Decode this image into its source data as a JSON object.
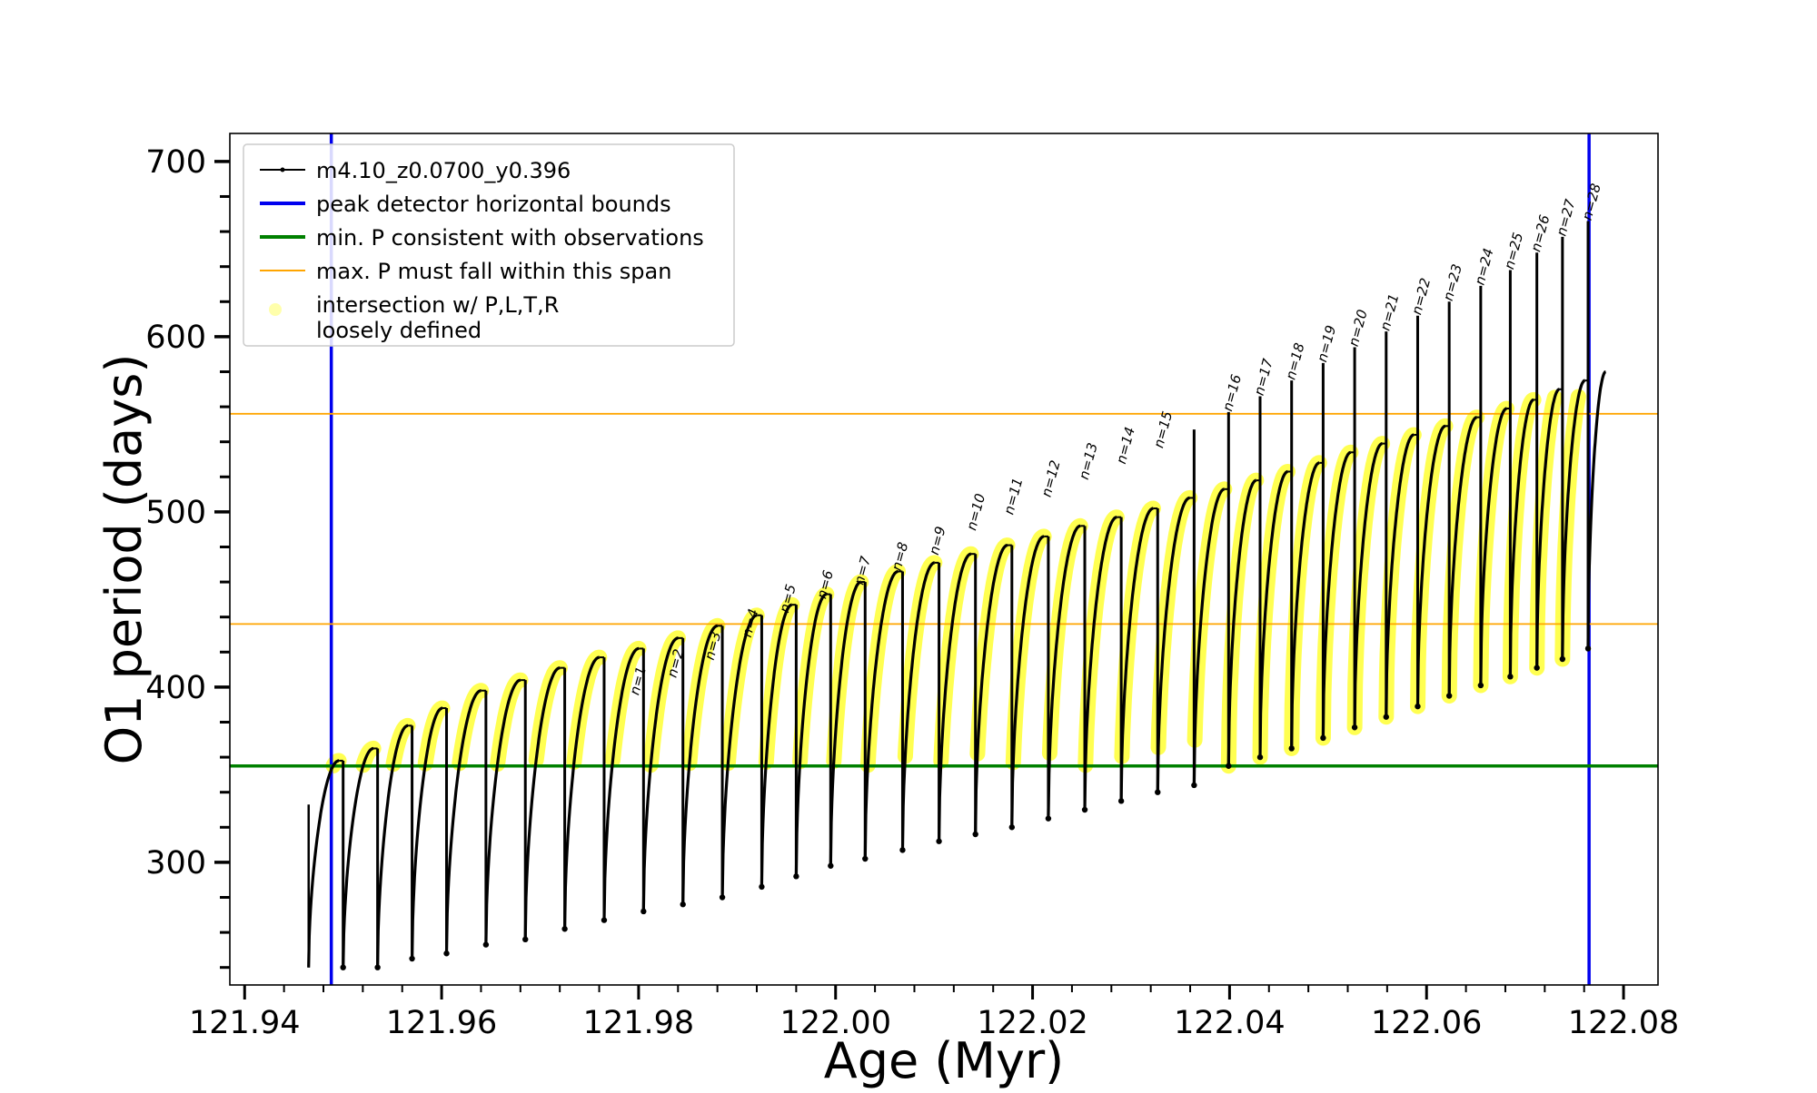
{
  "chart_data": {
    "type": "line",
    "title": "",
    "xlabel": "Age (Myr)",
    "ylabel": "O1 period (days)",
    "xlim": [
      121.9385,
      122.0835
    ],
    "ylim": [
      230,
      716
    ],
    "x_ticks": [
      121.94,
      121.96,
      121.98,
      122.0,
      122.02,
      122.04,
      122.06,
      122.08
    ],
    "x_tick_labels": [
      "121.94",
      "121.96",
      "121.98",
      "122.00",
      "122.02",
      "122.04",
      "122.06",
      "122.08"
    ],
    "y_ticks": [
      300,
      400,
      500,
      600,
      700
    ],
    "y_tick_labels": [
      "300",
      "400",
      "500",
      "600",
      "700"
    ],
    "grid": false,
    "legend": {
      "placement": "top-left",
      "entries": [
        {
          "label": "m4.10_z0.0700_y0.396",
          "color": "#000000",
          "style": "line-marker"
        },
        {
          "label": "peak detector horizontal bounds",
          "color": "#0000ee",
          "style": "thick-line"
        },
        {
          "label": "min. P consistent with observations",
          "color": "#008000",
          "style": "thick-line"
        },
        {
          "label": "max. P must fall within this span",
          "color": "#ffa500",
          "style": "thin-line"
        },
        {
          "label": "intersection w/ P,L,T,R\nloosely defined",
          "color": "#ffff66",
          "style": "dot"
        }
      ]
    },
    "reference_lines": {
      "vertical_blue_x": [
        121.9488,
        122.0765
      ],
      "horizontal_green_y": 355,
      "horizontal_orange_y": [
        556,
        436
      ]
    },
    "pulse_series": {
      "name": "m4.10_z0.0700_y0.396",
      "start": {
        "x": 121.9465,
        "y": 240
      },
      "pulses": [
        {
          "t": 121.95,
          "min": 240,
          "max": 358,
          "spike": null
        },
        {
          "t": 121.9535,
          "min": 240,
          "max": 365,
          "spike": null
        },
        {
          "t": 121.957,
          "min": 245,
          "max": 378,
          "spike": null
        },
        {
          "t": 121.9605,
          "min": 248,
          "max": 388,
          "spike": null
        },
        {
          "t": 121.9645,
          "min": 253,
          "max": 398,
          "spike": null
        },
        {
          "t": 121.9685,
          "min": 256,
          "max": 404,
          "spike": null
        },
        {
          "t": 121.9725,
          "min": 262,
          "max": 411,
          "spike": null
        },
        {
          "t": 121.9765,
          "min": 267,
          "max": 417,
          "spike": null
        },
        {
          "t": 121.9805,
          "min": 272,
          "max": 422,
          "spike": null
        },
        {
          "t": 121.9845,
          "min": 276,
          "max": 428,
          "spike": null
        },
        {
          "t": 121.9885,
          "min": 280,
          "max": 435,
          "spike": null
        },
        {
          "t": 121.9925,
          "min": 286,
          "max": 441,
          "spike": null
        },
        {
          "t": 121.996,
          "min": 292,
          "max": 447,
          "spike": null
        },
        {
          "t": 121.9995,
          "min": 298,
          "max": 453,
          "spike": null
        },
        {
          "t": 122.003,
          "min": 302,
          "max": 460,
          "spike": null
        },
        {
          "t": 122.0068,
          "min": 307,
          "max": 466,
          "spike": null
        },
        {
          "t": 122.0105,
          "min": 312,
          "max": 471,
          "spike": null
        },
        {
          "t": 122.0142,
          "min": 316,
          "max": 476,
          "spike": null
        },
        {
          "t": 122.0179,
          "min": 320,
          "max": 481,
          "spike": null
        },
        {
          "t": 122.0216,
          "min": 325,
          "max": 486,
          "spike": null
        },
        {
          "t": 122.0253,
          "min": 330,
          "max": 492,
          "spike": null
        },
        {
          "t": 122.029,
          "min": 335,
          "max": 497,
          "spike": null
        },
        {
          "t": 122.0327,
          "min": 340,
          "max": 502,
          "spike": null
        },
        {
          "t": 122.0364,
          "min": 344,
          "max": 508,
          "spike": 547
        },
        {
          "t": 122.0399,
          "min": 355,
          "max": 513,
          "spike": 557
        },
        {
          "t": 122.0431,
          "min": 360,
          "max": 518,
          "spike": 566
        },
        {
          "t": 122.0463,
          "min": 365,
          "max": 523,
          "spike": 575
        },
        {
          "t": 122.0495,
          "min": 371,
          "max": 528,
          "spike": 585
        },
        {
          "t": 122.0527,
          "min": 377,
          "max": 534,
          "spike": 594
        },
        {
          "t": 122.0559,
          "min": 383,
          "max": 539,
          "spike": 603
        },
        {
          "t": 122.0591,
          "min": 389,
          "max": 544,
          "spike": 612
        },
        {
          "t": 122.0623,
          "min": 395,
          "max": 549,
          "spike": 620
        },
        {
          "t": 122.0655,
          "min": 401,
          "max": 554,
          "spike": 629
        },
        {
          "t": 122.0685,
          "min": 406,
          "max": 559,
          "spike": 638
        },
        {
          "t": 122.0712,
          "min": 411,
          "max": 564,
          "spike": 648
        },
        {
          "t": 122.0738,
          "min": 416,
          "max": 570,
          "spike": 657
        },
        {
          "t": 122.0764,
          "min": 422,
          "max": 575,
          "spike": 666
        }
      ],
      "end": {
        "x": 122.0782,
        "y": 580
      }
    },
    "annotations": [
      {
        "text": "n=1",
        "x": 121.98,
        "y": 395
      },
      {
        "text": "n=2",
        "x": 121.9838,
        "y": 405
      },
      {
        "text": "n=3",
        "x": 121.9876,
        "y": 415
      },
      {
        "text": "n=4",
        "x": 121.9914,
        "y": 428
      },
      {
        "text": "n=5",
        "x": 121.9952,
        "y": 442
      },
      {
        "text": "n=6",
        "x": 121.999,
        "y": 450
      },
      {
        "text": "n=7",
        "x": 122.0028,
        "y": 458
      },
      {
        "text": "n=8",
        "x": 122.0066,
        "y": 466
      },
      {
        "text": "n=9",
        "x": 122.0104,
        "y": 475
      },
      {
        "text": "n=10",
        "x": 122.0142,
        "y": 489
      },
      {
        "text": "n=11",
        "x": 122.018,
        "y": 498
      },
      {
        "text": "n=12",
        "x": 122.0218,
        "y": 508
      },
      {
        "text": "n=13",
        "x": 122.0256,
        "y": 518
      },
      {
        "text": "n=14",
        "x": 122.0294,
        "y": 527
      },
      {
        "text": "n=15",
        "x": 122.0332,
        "y": 536
      },
      {
        "text": "n=16",
        "x": 122.0402,
        "y": 557
      },
      {
        "text": "n=17",
        "x": 122.0434,
        "y": 566
      },
      {
        "text": "n=18",
        "x": 122.0466,
        "y": 575
      },
      {
        "text": "n=19",
        "x": 122.0498,
        "y": 585
      },
      {
        "text": "n=20",
        "x": 122.053,
        "y": 594
      },
      {
        "text": "n=21",
        "x": 122.0562,
        "y": 603
      },
      {
        "text": "n=22",
        "x": 122.0594,
        "y": 612
      },
      {
        "text": "n=23",
        "x": 122.0626,
        "y": 620
      },
      {
        "text": "n=24",
        "x": 122.0658,
        "y": 629
      },
      {
        "text": "n=25",
        "x": 122.0688,
        "y": 638
      },
      {
        "text": "n=26",
        "x": 122.0715,
        "y": 648
      },
      {
        "text": "n=27",
        "x": 122.0741,
        "y": 657
      },
      {
        "text": "n=28",
        "x": 122.0767,
        "y": 666
      }
    ]
  }
}
